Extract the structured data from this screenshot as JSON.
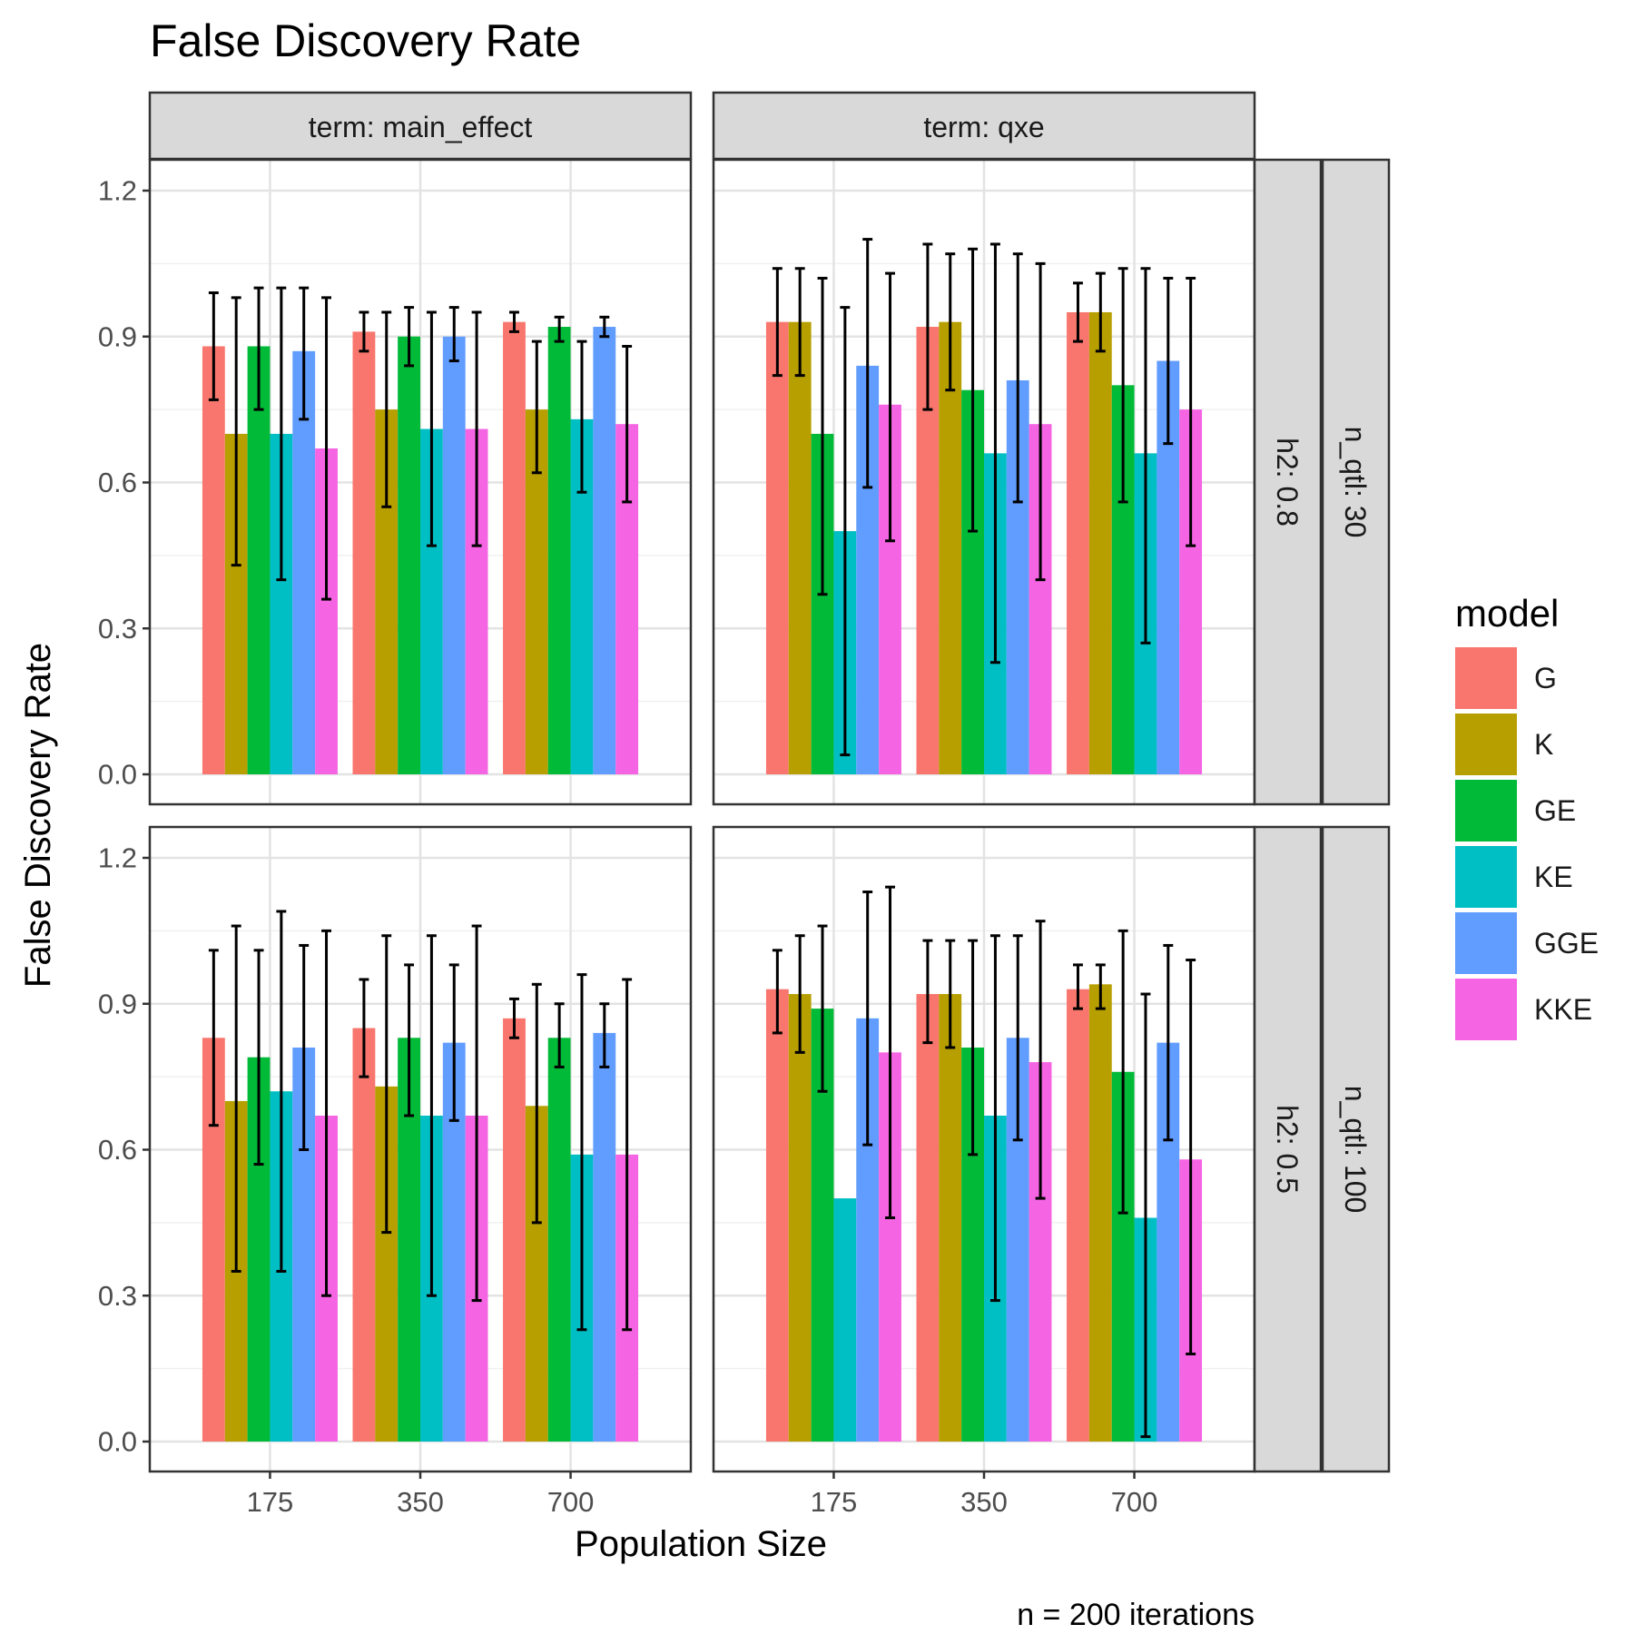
{
  "chart_data": {
    "type": "bar",
    "title": "False Discovery Rate",
    "xlabel": "Population Size",
    "ylabel": "False Discovery Rate",
    "caption": "n = 200 iterations",
    "categories": [
      "175",
      "350",
      "700"
    ],
    "ylim": [
      0,
      1.2
    ],
    "yticks": [
      "0.0",
      "0.3",
      "0.6",
      "0.9",
      "1.2"
    ],
    "grid": true,
    "legend": {
      "title": "model",
      "position": "right",
      "items": [
        {
          "name": "G",
          "color": "#F8766D"
        },
        {
          "name": "K",
          "color": "#B79F00"
        },
        {
          "name": "GE",
          "color": "#00BA38"
        },
        {
          "name": "KE",
          "color": "#00BFC4"
        },
        {
          "name": "GGE",
          "color": "#619CFF"
        },
        {
          "name": "KKE",
          "color": "#F564E3"
        }
      ]
    },
    "col_strips": [
      "term: main_effect",
      "term: qxe"
    ],
    "row_strips_inner": [
      "h2: 0.8",
      "h2: 0.5"
    ],
    "row_strips_outer": [
      "n_qtl: 30",
      "n_qtl: 100"
    ],
    "panels": [
      {
        "row": 0,
        "col": 0,
        "series": [
          {
            "name": "G",
            "values": [
              0.88,
              0.91,
              0.93
            ],
            "lower": [
              0.77,
              0.87,
              0.91
            ],
            "upper": [
              0.99,
              0.95,
              0.95
            ]
          },
          {
            "name": "K",
            "values": [
              0.7,
              0.75,
              0.75
            ],
            "lower": [
              0.43,
              0.55,
              0.62
            ],
            "upper": [
              0.98,
              0.95,
              0.89
            ]
          },
          {
            "name": "GE",
            "values": [
              0.88,
              0.9,
              0.92
            ],
            "lower": [
              0.75,
              0.84,
              0.89
            ],
            "upper": [
              1.0,
              0.96,
              0.94
            ]
          },
          {
            "name": "KE",
            "values": [
              0.7,
              0.71,
              0.73
            ],
            "lower": [
              0.4,
              0.47,
              0.58
            ],
            "upper": [
              1.0,
              0.95,
              0.89
            ]
          },
          {
            "name": "GGE",
            "values": [
              0.87,
              0.9,
              0.92
            ],
            "lower": [
              0.73,
              0.85,
              0.9
            ],
            "upper": [
              1.0,
              0.96,
              0.94
            ]
          },
          {
            "name": "KKE",
            "values": [
              0.67,
              0.71,
              0.72
            ],
            "lower": [
              0.36,
              0.47,
              0.56
            ],
            "upper": [
              0.98,
              0.95,
              0.88
            ]
          }
        ]
      },
      {
        "row": 0,
        "col": 1,
        "series": [
          {
            "name": "G",
            "values": [
              0.93,
              0.92,
              0.95
            ],
            "lower": [
              0.82,
              0.75,
              0.89
            ],
            "upper": [
              1.04,
              1.09,
              1.01
            ]
          },
          {
            "name": "K",
            "values": [
              0.93,
              0.93,
              0.95
            ],
            "lower": [
              0.82,
              0.79,
              0.87
            ],
            "upper": [
              1.04,
              1.07,
              1.03
            ]
          },
          {
            "name": "GE",
            "values": [
              0.7,
              0.79,
              0.8
            ],
            "lower": [
              0.37,
              0.5,
              0.56
            ],
            "upper": [
              1.02,
              1.08,
              1.04
            ]
          },
          {
            "name": "KE",
            "values": [
              0.5,
              0.66,
              0.66
            ],
            "lower": [
              0.04,
              0.23,
              0.27
            ],
            "upper": [
              0.96,
              1.09,
              1.04
            ]
          },
          {
            "name": "GGE",
            "values": [
              0.84,
              0.81,
              0.85
            ],
            "lower": [
              0.59,
              0.56,
              0.68
            ],
            "upper": [
              1.1,
              1.07,
              1.02
            ]
          },
          {
            "name": "KKE",
            "values": [
              0.76,
              0.72,
              0.75
            ],
            "lower": [
              0.48,
              0.4,
              0.47
            ],
            "upper": [
              1.03,
              1.05,
              1.02
            ]
          }
        ]
      },
      {
        "row": 1,
        "col": 0,
        "series": [
          {
            "name": "G",
            "values": [
              0.83,
              0.85,
              0.87
            ],
            "lower": [
              0.65,
              0.75,
              0.83
            ],
            "upper": [
              1.01,
              0.95,
              0.91
            ]
          },
          {
            "name": "K",
            "values": [
              0.7,
              0.73,
              0.69
            ],
            "lower": [
              0.35,
              0.43,
              0.45
            ],
            "upper": [
              1.06,
              1.04,
              0.94
            ]
          },
          {
            "name": "GE",
            "values": [
              0.79,
              0.83,
              0.83
            ],
            "lower": [
              0.57,
              0.67,
              0.77
            ],
            "upper": [
              1.01,
              0.98,
              0.9
            ]
          },
          {
            "name": "KE",
            "values": [
              0.72,
              0.67,
              0.59
            ],
            "lower": [
              0.35,
              0.3,
              0.23
            ],
            "upper": [
              1.09,
              1.04,
              0.96
            ]
          },
          {
            "name": "GGE",
            "values": [
              0.81,
              0.82,
              0.84
            ],
            "lower": [
              0.6,
              0.66,
              0.77
            ],
            "upper": [
              1.02,
              0.98,
              0.9
            ]
          },
          {
            "name": "KKE",
            "values": [
              0.67,
              0.67,
              0.59
            ],
            "lower": [
              0.3,
              0.29,
              0.23
            ],
            "upper": [
              1.05,
              1.06,
              0.95
            ]
          }
        ]
      },
      {
        "row": 1,
        "col": 1,
        "series": [
          {
            "name": "G",
            "values": [
              0.93,
              0.92,
              0.93
            ],
            "lower": [
              0.84,
              0.82,
              0.89
            ],
            "upper": [
              1.01,
              1.03,
              0.98
            ]
          },
          {
            "name": "K",
            "values": [
              0.92,
              0.92,
              0.94
            ],
            "lower": [
              0.8,
              0.81,
              0.89
            ],
            "upper": [
              1.04,
              1.03,
              0.98
            ]
          },
          {
            "name": "GE",
            "values": [
              0.89,
              0.81,
              0.76
            ],
            "lower": [
              0.72,
              0.59,
              0.47
            ],
            "upper": [
              1.06,
              1.03,
              1.05
            ]
          },
          {
            "name": "KE",
            "values": [
              0.5,
              0.67,
              0.46
            ],
            "lower": [
              null,
              0.29,
              0.01
            ],
            "upper": [
              null,
              1.04,
              0.92
            ]
          },
          {
            "name": "GGE",
            "values": [
              0.87,
              0.83,
              0.82
            ],
            "lower": [
              0.61,
              0.62,
              0.62
            ],
            "upper": [
              1.13,
              1.04,
              1.02
            ]
          },
          {
            "name": "KKE",
            "values": [
              0.8,
              0.78,
              0.58
            ],
            "lower": [
              0.46,
              0.5,
              0.18
            ],
            "upper": [
              1.14,
              1.07,
              0.99
            ]
          }
        ]
      }
    ]
  }
}
